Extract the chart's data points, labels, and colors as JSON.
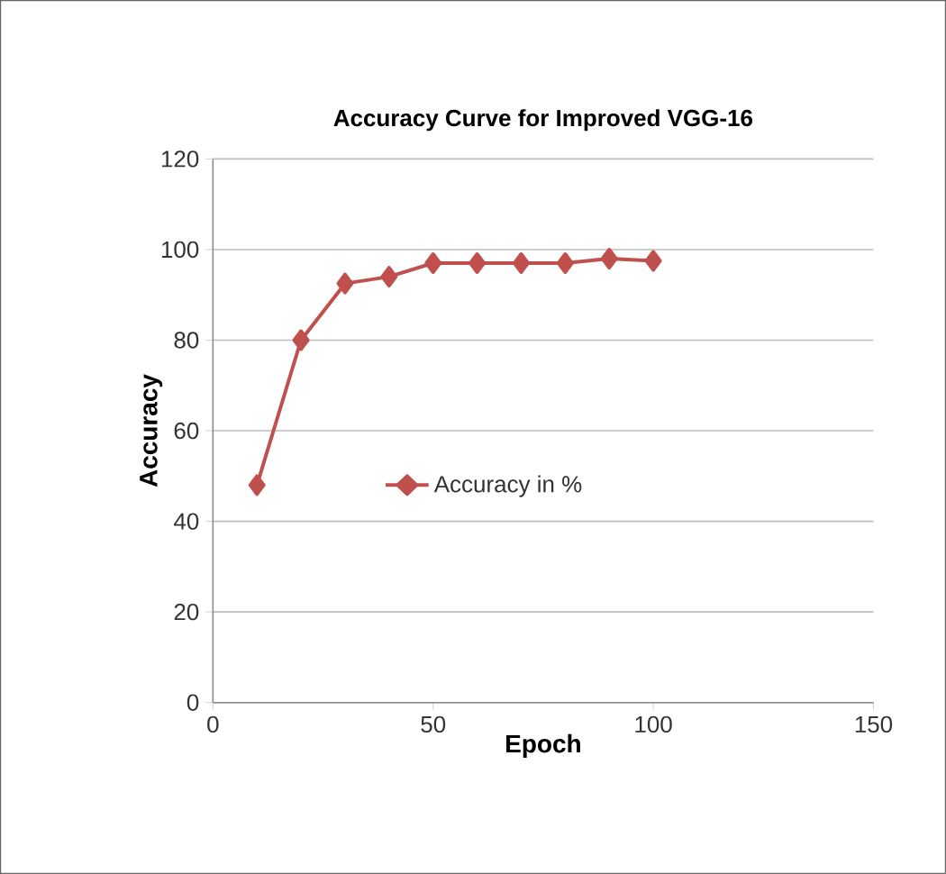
{
  "chart_data": {
    "type": "line",
    "title": "Accuracy Curve for Improved VGG-16",
    "xlabel": "Epoch",
    "ylabel": "Accuracy",
    "x": [
      10,
      20,
      30,
      40,
      50,
      60,
      70,
      80,
      90,
      100
    ],
    "series": [
      {
        "name": "Accuracy in %",
        "color": "#c0504d",
        "values": [
          48,
          80,
          92.5,
          94,
          97,
          97,
          97,
          97,
          98,
          97.5
        ]
      }
    ],
    "xlim": [
      0,
      150
    ],
    "xticks": [
      0,
      50,
      100,
      150
    ],
    "ylim": [
      0,
      120
    ],
    "yticks": [
      0,
      20,
      40,
      60,
      80,
      100,
      120
    ],
    "grid": "y",
    "legend": "left",
    "marker": "diamond",
    "line_style": "solid"
  }
}
